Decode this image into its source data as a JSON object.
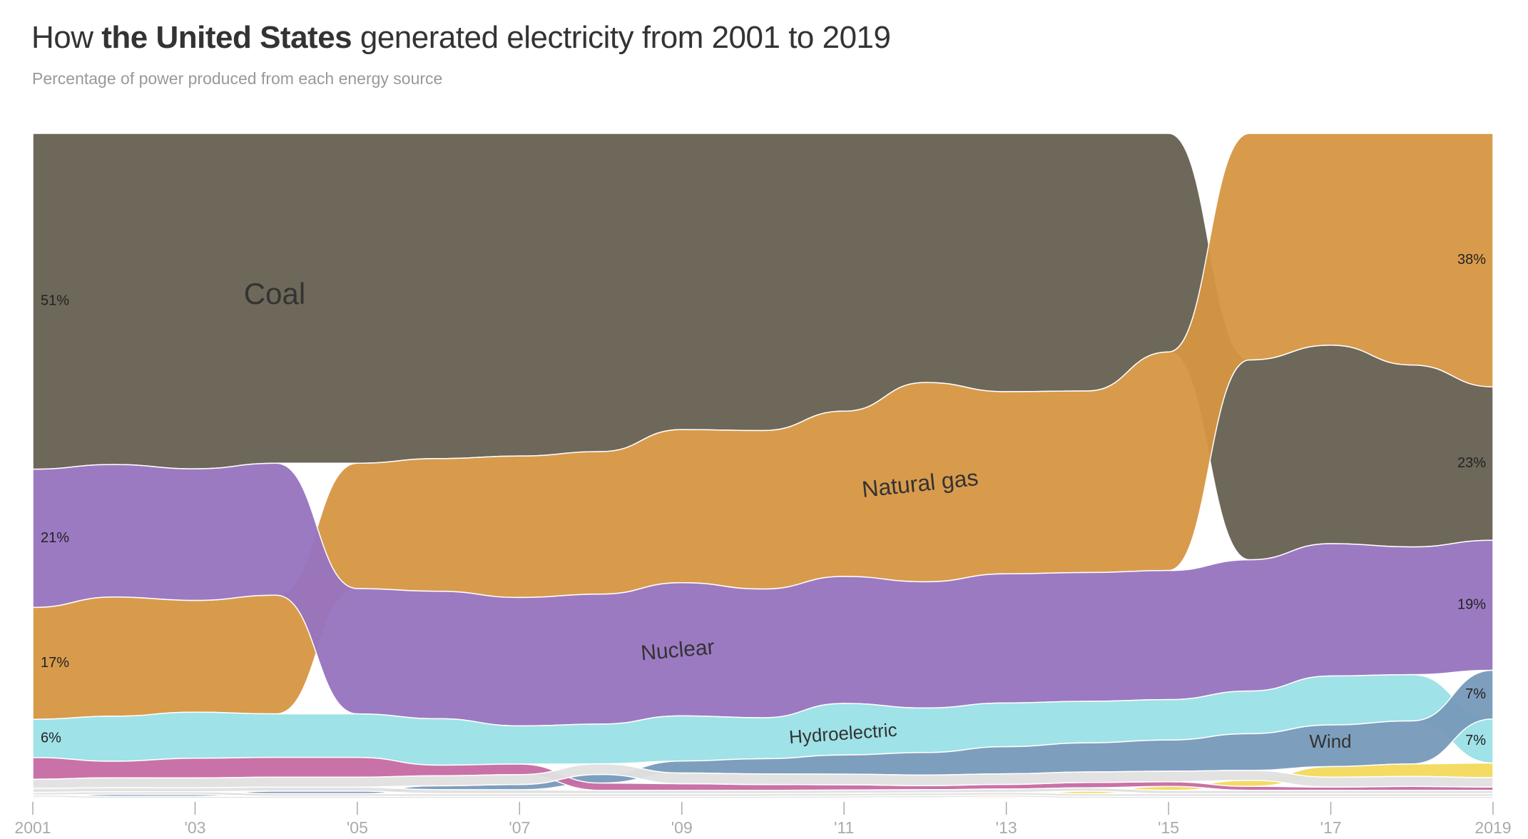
{
  "title": {
    "pre": "How ",
    "bold": "the United States",
    "post": " generated electricity from 2001 to 2019"
  },
  "subtitle": "Percentage of power produced from each energy source",
  "chart_data": {
    "type": "area",
    "subtype": "ranked stacked area (bump), sources sorted by share each year",
    "x": [
      2001,
      2002,
      2003,
      2004,
      2005,
      2006,
      2007,
      2008,
      2009,
      2010,
      2011,
      2012,
      2013,
      2014,
      2015,
      2016,
      2017,
      2018,
      2019
    ],
    "x_tick_labels": [
      "2001",
      "'03",
      "'05",
      "'07",
      "'09",
      "'11",
      "'13",
      "'15",
      "'17",
      "2019"
    ],
    "x_tick_values": [
      2001,
      2003,
      2005,
      2007,
      2009,
      2011,
      2013,
      2015,
      2017,
      2019
    ],
    "ylim": [
      0,
      100
    ],
    "grid": false,
    "legend": "none (direct labels)",
    "series": [
      {
        "name": "Coal",
        "color": "#656050",
        "values": [
          51,
          50,
          51,
          50,
          50,
          49,
          49,
          48,
          44.5,
          45,
          42,
          37.5,
          39,
          39,
          33,
          30,
          30,
          27.5,
          23
        ]
      },
      {
        "name": "Natural gas",
        "color": "#d69642",
        "values": [
          17,
          18,
          17,
          18,
          19,
          20,
          21.5,
          21.5,
          23,
          24,
          25,
          30,
          27.5,
          27.5,
          33,
          34,
          32,
          35,
          38
        ]
      },
      {
        "name": "Nuclear",
        "color": "#9773bf",
        "values": [
          21,
          20,
          20,
          20,
          19,
          19.2,
          19.5,
          19.6,
          20,
          19.5,
          19.2,
          19,
          19.5,
          19.5,
          19.5,
          19.7,
          20,
          19.3,
          19.5
        ]
      },
      {
        "name": "Hydroelectric",
        "color": "#9ae0e6",
        "values": [
          5.8,
          6.8,
          7,
          6.6,
          6.6,
          7,
          5.8,
          6,
          6.8,
          6.2,
          7.8,
          6.7,
          6.6,
          6.3,
          6.1,
          6.4,
          7.4,
          7,
          6.6
        ]
      },
      {
        "name": "Wind",
        "color": "#7799bb",
        "values": [
          0.2,
          0.3,
          0.3,
          0.4,
          0.4,
          0.6,
          0.8,
          1.3,
          1.8,
          2.3,
          2.9,
          3.4,
          4.1,
          4.4,
          4.7,
          5.5,
          6.3,
          6.5,
          7.3
        ]
      },
      {
        "color": "#f2d95c",
        "values": [
          0,
          0,
          0,
          0,
          0,
          0,
          0,
          0,
          0,
          0,
          0.05,
          0.1,
          0.2,
          0.4,
          0.6,
          0.9,
          1.6,
          1.9,
          2.2
        ]
      },
      {
        "color": "#c66aa3",
        "values": [
          3.3,
          2.5,
          3,
          3,
          3,
          1.6,
          1.6,
          1.1,
          1,
          0.9,
          0.8,
          0.6,
          0.7,
          0.8,
          0.7,
          0.6,
          0.5,
          0.6,
          0.5
        ]
      },
      {
        "color": "#e0e0e0",
        "values": [
          1.4,
          1.5,
          1.5,
          1.5,
          1.5,
          1.5,
          1.5,
          1.6,
          1.6,
          1.6,
          1.6,
          1.6,
          1.6,
          1.6,
          1.6,
          1.5,
          1.5,
          1.5,
          1.4
        ]
      },
      {
        "color": "#e0e0e0",
        "values": [
          0.6,
          0.6,
          0.6,
          0.6,
          0.6,
          0.6,
          0.6,
          0.5,
          0.5,
          0.5,
          0.5,
          0.5,
          0.5,
          0.5,
          0.5,
          0.5,
          0.5,
          0.5,
          0.5
        ]
      },
      {
        "color": "#e0e0e0",
        "values": [
          0.4,
          0.4,
          0.4,
          0.4,
          0.4,
          0.4,
          0.4,
          0.4,
          0.4,
          0.4,
          0.4,
          0.4,
          0.4,
          0.4,
          0.4,
          0.4,
          0.4,
          0.4,
          0.4
        ]
      },
      {
        "color": "#e0e0e0",
        "values": [
          0.3,
          0.3,
          0.3,
          0.3,
          0.3,
          0.3,
          0.3,
          0.3,
          0.3,
          0.3,
          0.3,
          0.3,
          0.3,
          0.3,
          0.3,
          0.3,
          0.3,
          0.3,
          0.3
        ]
      }
    ],
    "start_labels": [
      {
        "series": "Coal",
        "text": "51%"
      },
      {
        "series": "Nuclear",
        "text": "21%"
      },
      {
        "series": "Natural gas",
        "text": "17%"
      },
      {
        "series": "Hydroelectric",
        "text": "6%"
      }
    ],
    "end_labels": [
      {
        "series": "Natural gas",
        "text": "38%"
      },
      {
        "series": "Coal",
        "text": "23%"
      },
      {
        "series": "Nuclear",
        "text": "19%"
      },
      {
        "series": "Wind",
        "text": "7%"
      },
      {
        "series": "Hydroelectric",
        "text": "7%"
      }
    ]
  }
}
